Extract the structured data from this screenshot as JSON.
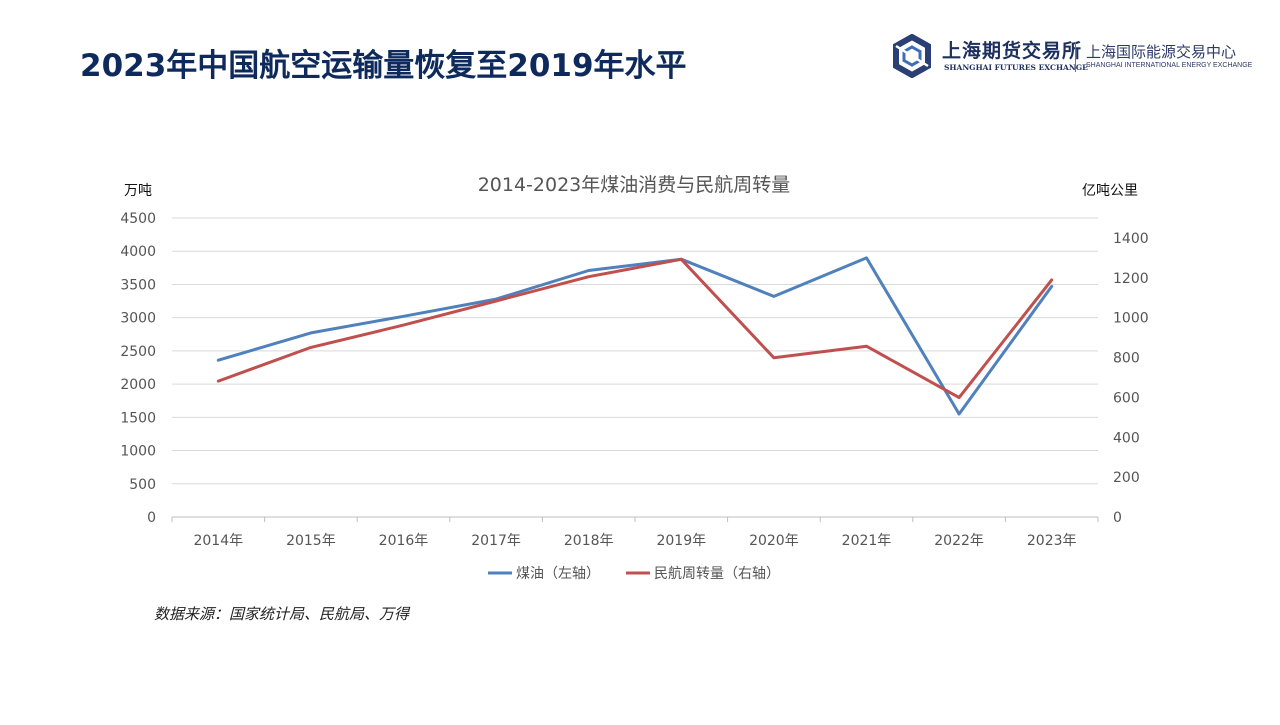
{
  "page": {
    "title": "2023年中国航空运输量恢复至2019年水平",
    "source": "数据来源：国家统计局、民航局、万得"
  },
  "logo": {
    "shfe_cn": "上海期货交易所",
    "shfe_en": "SHANGHAI FUTURES EXCHANGE",
    "ine_cn": "上海国际能源交易中心",
    "ine_en": "SHANGHAI INTERNATIONAL ENERGY EXCHANGE",
    "color": "#1d2f5e"
  },
  "chart_data": {
    "type": "line",
    "title": "2014-2023年煤油消费与民航周转量",
    "ylabel_left": "万吨",
    "ylabel_right": "亿吨公里",
    "categories": [
      "2014年",
      "2015年",
      "2016年",
      "2017年",
      "2018年",
      "2019年",
      "2020年",
      "2021年",
      "2022年",
      "2023年"
    ],
    "ylim_left": [
      0,
      4500
    ],
    "yticks_left": [
      0,
      500,
      1000,
      1500,
      2000,
      2500,
      3000,
      3500,
      4000,
      4500
    ],
    "ylim_right": [
      0,
      1400
    ],
    "yticks_right": [
      0,
      200,
      400,
      600,
      800,
      1000,
      1200,
      1400
    ],
    "series": [
      {
        "name": "煤油（左轴）",
        "axis": "left",
        "color": "#4f81bd",
        "values": [
          2360,
          2770,
          3020,
          3280,
          3710,
          3880,
          3320,
          3900,
          1550,
          3470
        ]
      },
      {
        "name": "民航周转量（右轴）",
        "axis": "right",
        "color": "#c0504d",
        "values": [
          682,
          851,
          963,
          1084,
          1206,
          1293,
          799,
          857,
          599,
          1190
        ]
      }
    ],
    "grid": true,
    "legend": "bottom"
  }
}
